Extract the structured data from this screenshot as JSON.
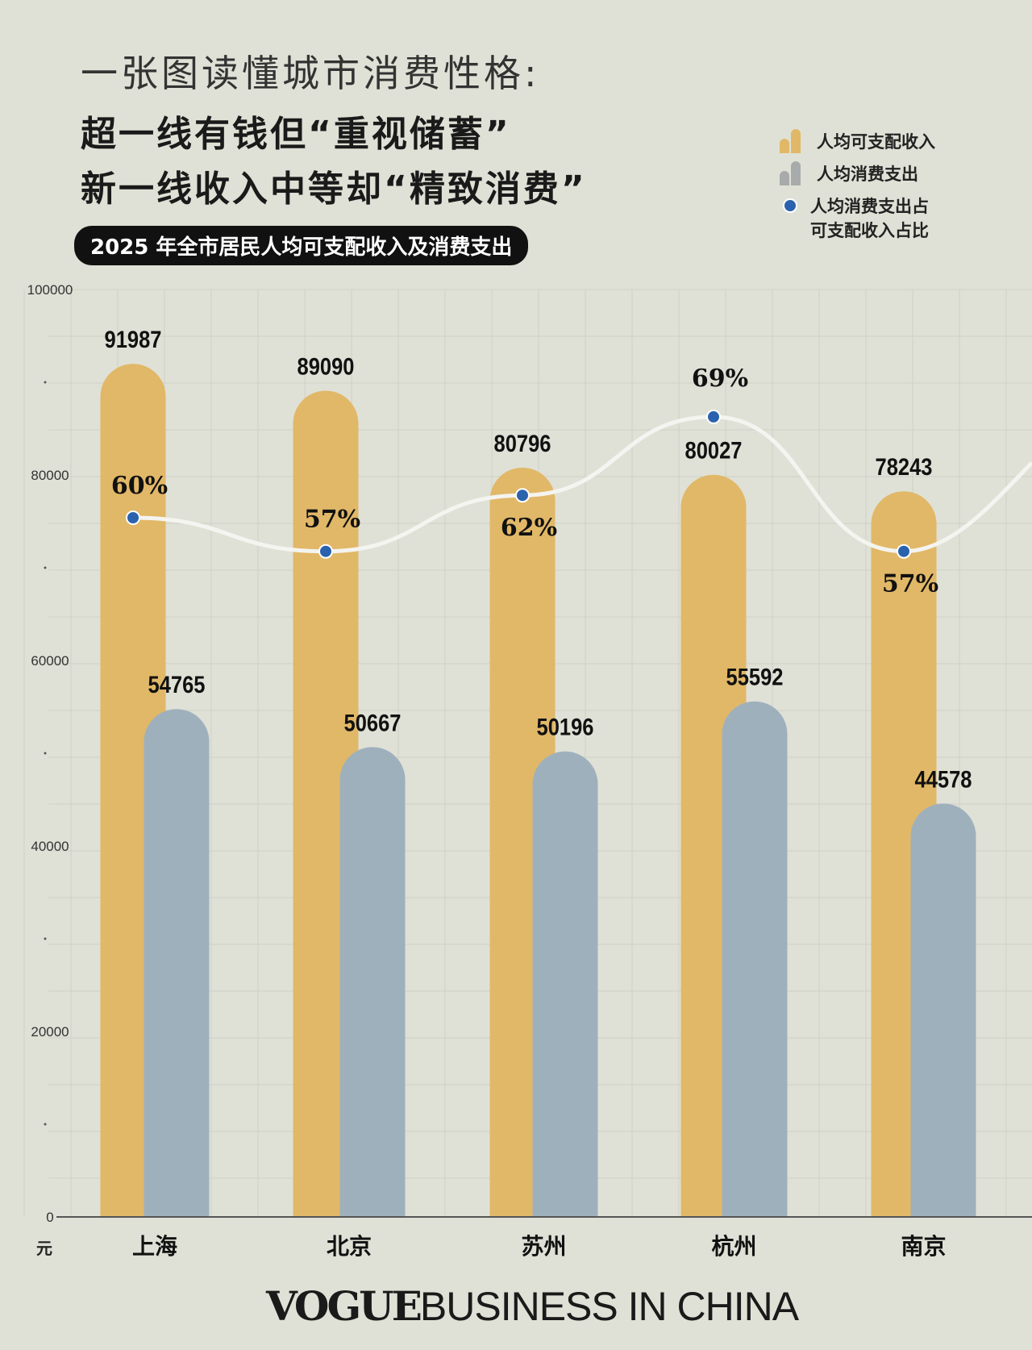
{
  "header": {
    "title_line1": "一张图读懂城市消费性格:",
    "title_line2": "超一线有钱但“重视储蓄”",
    "title_line3": "新一线收入中等却“精致消费”",
    "subtitle": "2025 年全市居民人均可支配收入及消费支出"
  },
  "legend": [
    {
      "label": "人均可支配收入",
      "color": "#e1b868",
      "icon": "bar-icon"
    },
    {
      "label": "人均消费支出",
      "color": "#a8abab",
      "icon": "bar-icon"
    },
    {
      "label": "人均消费支出占可支配收入占比",
      "line1": "人均消费支出占",
      "line2": "可支配收入占比",
      "color": "#2a62ad",
      "icon": "dot-icon"
    }
  ],
  "chart_data": {
    "type": "bar",
    "categories": [
      "上海",
      "北京",
      "苏州",
      "杭州",
      "南京"
    ],
    "series": [
      {
        "name": "人均可支配收入",
        "values": [
          91987,
          89090,
          80796,
          80027,
          78243
        ],
        "color": "#e1b868"
      },
      {
        "name": "人均消费支出",
        "values": [
          54765,
          50667,
          50196,
          55592,
          44578
        ],
        "color": "#9fb0bd"
      },
      {
        "name": "人均消费支出占可支配收入占比",
        "type": "line",
        "values": [
          60,
          57,
          62,
          69,
          57
        ],
        "unit": "%",
        "color": "#2a62ad"
      }
    ],
    "yticks": [
      0,
      20000,
      40000,
      60000,
      80000,
      100000
    ],
    "ylim": [
      0,
      100000
    ],
    "yunit": "元",
    "grid": true
  },
  "footer": {
    "brand_bold": "VOGUE",
    "brand_rest": "BUSINESS IN CHINA"
  }
}
